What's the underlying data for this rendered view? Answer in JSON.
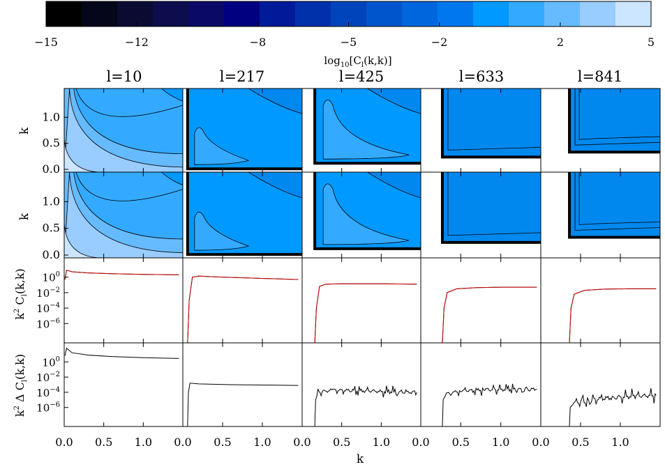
{
  "colorbar": {
    "label": "log10[Cl(k,k)]",
    "label_main": "log",
    "label_sub": "10",
    "label_rest": "[C",
    "label_sub2": "l",
    "label_end": "(k,k)]",
    "ticks": [
      "−15",
      "−12",
      "−8",
      "−5",
      "−2",
      "2",
      "5"
    ],
    "levels": [
      "#000000",
      "#06061a",
      "#0a0a33",
      "#0d0d4d",
      "#0a0a66",
      "#000080",
      "#001a99",
      "#0030aa",
      "#0044bb",
      "#0055cc",
      "#0066dd",
      "#0077ee",
      "#0099ff",
      "#33aaff",
      "#66bbff",
      "#99ccff",
      "#cce6ff"
    ]
  },
  "columns": [
    "l=10",
    "l=217",
    "l=425",
    "l=633",
    "l=841"
  ],
  "y_labels": {
    "row1": "k",
    "row2": "k",
    "row3_main": "k",
    "row3_sup": "2",
    "row3_rest": " C",
    "row3_sub": "l",
    "row3_end": "(k,k)",
    "row4_main": "k",
    "row4_sup": "2",
    "row4_rest": " Δ C",
    "row4_sub": "l",
    "row4_end": "(k,k)"
  },
  "x_label": "k",
  "x_ticks": [
    "0.0",
    "0.5",
    "1.0"
  ],
  "y_ticks_contour": [
    "0.0",
    "0.5",
    "1.0"
  ],
  "y_ticks_log": {
    "base": "10",
    "exps": [
      "0",
      "−2",
      "−4",
      "−6"
    ]
  },
  "chart_data": {
    "type": "heatmap",
    "description_rows": [
      "contour Cl(k,k) exact",
      "contour Cl(k,k) approx",
      "k^2 Cl(k,k)",
      "k^2 Δ Cl(k,k)"
    ],
    "l_values": [
      10,
      217,
      425,
      633,
      841
    ],
    "k_range": [
      0.0,
      1.5
    ],
    "k_min_cutoff": [
      0.0,
      0.06,
      0.16,
      0.27,
      0.36
    ],
    "colorbar_range": [
      -15,
      5
    ],
    "row3_series": [
      {
        "x": [
          0.01,
          0.03,
          0.1,
          0.3,
          0.6,
          1.0,
          1.45
        ],
        "y": [
          -0.3,
          0.9,
          0.7,
          0.55,
          0.45,
          0.35,
          0.3
        ]
      },
      {
        "x": [
          0.06,
          0.08,
          0.12,
          0.2,
          0.4,
          0.8,
          1.45
        ],
        "y": [
          -9,
          -3,
          0.0,
          0.15,
          0.05,
          -0.1,
          -0.3
        ]
      },
      {
        "x": [
          0.16,
          0.18,
          0.22,
          0.3,
          0.5,
          1.0,
          1.45
        ],
        "y": [
          -9,
          -4,
          -1.2,
          -0.9,
          -0.85,
          -0.85,
          -0.9
        ]
      },
      {
        "x": [
          0.27,
          0.29,
          0.33,
          0.45,
          0.7,
          1.0,
          1.45
        ],
        "y": [
          -9,
          -4,
          -2.0,
          -1.5,
          -1.35,
          -1.3,
          -1.3
        ]
      },
      {
        "x": [
          0.36,
          0.38,
          0.42,
          0.55,
          0.8,
          1.1,
          1.45
        ],
        "y": [
          -9,
          -4,
          -2.2,
          -1.7,
          -1.55,
          -1.5,
          -1.5
        ]
      }
    ],
    "row4_series": [
      {
        "x": [
          0.01,
          0.03,
          0.1,
          0.3,
          0.6,
          1.0,
          1.45
        ],
        "y": [
          0.8,
          1.8,
          1.2,
          0.9,
          0.7,
          0.55,
          0.45
        ]
      },
      {
        "x": [
          0.06,
          0.07,
          0.09,
          0.2,
          0.6,
          1.0,
          1.45
        ],
        "y": [
          -9,
          -4,
          -2.8,
          -2.9,
          -3.0,
          -3.05,
          -3.1
        ]
      },
      {
        "x": [
          0.16,
          0.17,
          0.2,
          0.4,
          0.8,
          1.2,
          1.45
        ],
        "y": [
          -9,
          -5,
          -4.0,
          -3.7,
          -3.8,
          -4.0,
          -4.0
        ]
      },
      {
        "x": [
          0.27,
          0.28,
          0.32,
          0.5,
          0.8,
          1.2,
          1.45
        ],
        "y": [
          -9,
          -5,
          -4.2,
          -3.8,
          -3.7,
          -3.6,
          -3.6
        ]
      },
      {
        "x": [
          0.36,
          0.37,
          0.42,
          0.6,
          0.9,
          1.2,
          1.45
        ],
        "y": [
          -9,
          -6,
          -5.4,
          -5.0,
          -4.7,
          -4.5,
          -4.4
        ]
      }
    ]
  }
}
